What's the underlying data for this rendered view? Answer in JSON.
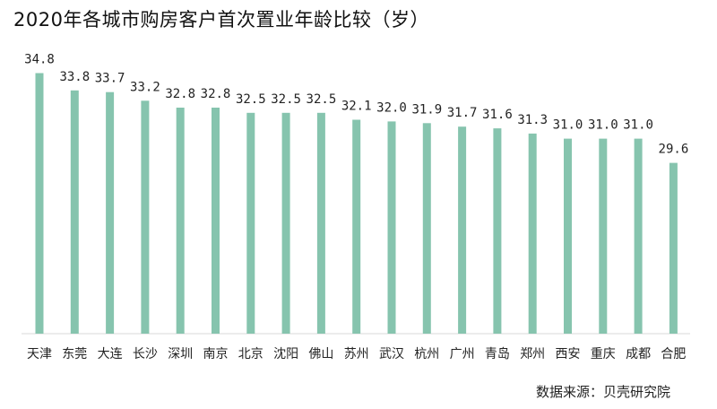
{
  "title": "2020年各城市购房客户首次置业年龄比较（岁）",
  "source": "数据来源：贝壳研究院",
  "colors": {
    "bar": "#86c4ae",
    "axis": "#d9d9d9"
  },
  "chart_data": {
    "type": "bar",
    "title": "2020年各城市购房客户首次置业年龄比较（岁）",
    "xlabel": "",
    "ylabel": "",
    "grid": false,
    "categories": [
      "天津",
      "东莞",
      "大连",
      "长沙",
      "深圳",
      "南京",
      "北京",
      "沈阳",
      "佛山",
      "苏州",
      "武汉",
      "杭州",
      "广州",
      "青岛",
      "郑州",
      "西安",
      "重庆",
      "成都",
      "合肥"
    ],
    "value_labels": [
      "34.8",
      "33.8",
      "33.7",
      "33.2",
      "32.8",
      "32.8",
      "32.5",
      "32.5",
      "32.5",
      "32.1",
      "32.0",
      "31.9",
      "31.7",
      "31.6",
      "31.3",
      "31.0",
      "31.0",
      "31.0",
      "29.6"
    ],
    "values": [
      34.8,
      33.8,
      33.7,
      33.2,
      32.8,
      32.8,
      32.5,
      32.5,
      32.5,
      32.1,
      32.0,
      31.9,
      31.7,
      31.6,
      31.3,
      31.0,
      31.0,
      31.0,
      29.6
    ],
    "ylim": [
      19.7,
      35.4
    ]
  }
}
